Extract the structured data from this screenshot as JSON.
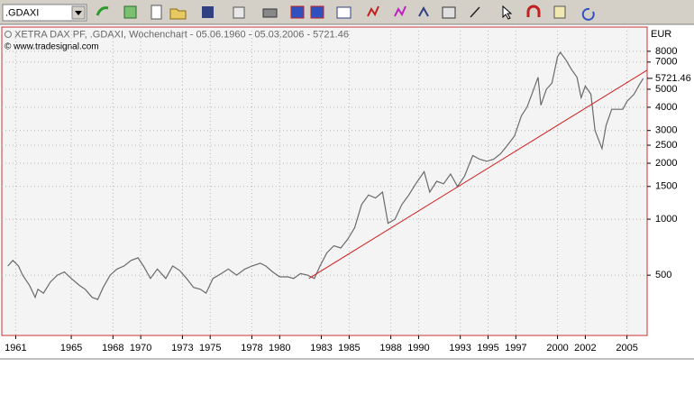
{
  "toolbar": {
    "symbol": ".GDAXI"
  },
  "chart_data": {
    "type": "line",
    "title": "XETRA DAX PF, .GDAXI, Wochenchart - 05.06.1960 - 05.03.2006 - 5721.46",
    "subtitle": "© www.tradesignal.com",
    "y_axis_label": "EUR",
    "last_value": 5721.46,
    "color": "#6a6a6a",
    "log_scale": true,
    "grid": true,
    "xlim": [
      1960,
      2006.45
    ],
    "xticks": [
      1961,
      1965,
      1968,
      1970,
      1973,
      1975,
      1978,
      1980,
      1983,
      1985,
      1988,
      1990,
      1993,
      1995,
      1997,
      2000,
      2002,
      2005
    ],
    "ylim": [
      237,
      10800
    ],
    "yticks": [
      500,
      1000,
      1500,
      2000,
      2500,
      3000,
      4000,
      5000,
      7000,
      8000
    ],
    "x": [
      1960.43,
      1960.8,
      1961.2,
      1961.5,
      1962.0,
      1962.4,
      1962.6,
      1963.0,
      1963.5,
      1964.0,
      1964.5,
      1965.0,
      1965.6,
      1966.0,
      1966.5,
      1966.9,
      1967.3,
      1967.8,
      1968.3,
      1968.8,
      1969.3,
      1969.8,
      1970.2,
      1970.7,
      1971.2,
      1971.8,
      1972.3,
      1972.8,
      1973.3,
      1973.8,
      1974.3,
      1974.7,
      1975.2,
      1975.8,
      1976.3,
      1976.9,
      1977.5,
      1978.0,
      1978.6,
      1979.0,
      1979.5,
      1980.0,
      1980.6,
      1981.0,
      1981.5,
      1982.0,
      1982.5,
      1982.9,
      1983.4,
      1983.9,
      1984.4,
      1984.9,
      1985.4,
      1985.9,
      1986.4,
      1986.9,
      1987.4,
      1987.8,
      1988.3,
      1988.8,
      1989.3,
      1989.8,
      1990.4,
      1990.8,
      1991.3,
      1991.8,
      1992.3,
      1992.8,
      1993.3,
      1993.9,
      1994.4,
      1994.9,
      1995.4,
      1995.9,
      1996.4,
      1996.9,
      1997.4,
      1997.8,
      1998.2,
      1998.6,
      1998.8,
      1999.2,
      1999.6,
      2000.0,
      2000.2,
      2000.6,
      2001.0,
      2001.4,
      2001.7,
      2002.0,
      2002.4,
      2002.7,
      2003.2,
      2003.5,
      2003.9,
      2004.3,
      2004.7,
      2005.0,
      2005.5,
      2005.9,
      2006.17
    ],
    "values": [
      560,
      600,
      560,
      500,
      440,
      380,
      420,
      400,
      460,
      500,
      520,
      480,
      440,
      420,
      380,
      370,
      430,
      500,
      540,
      560,
      600,
      620,
      560,
      480,
      540,
      480,
      560,
      530,
      480,
      430,
      420,
      400,
      480,
      510,
      540,
      500,
      540,
      560,
      580,
      560,
      520,
      490,
      490,
      480,
      510,
      500,
      480,
      560,
      660,
      720,
      700,
      780,
      900,
      1200,
      1350,
      1300,
      1400,
      950,
      1000,
      1200,
      1350,
      1550,
      1800,
      1400,
      1600,
      1550,
      1750,
      1500,
      1700,
      2200,
      2100,
      2050,
      2100,
      2250,
      2500,
      2800,
      3600,
      4000,
      4800,
      5800,
      4100,
      5000,
      5400,
      7500,
      7900,
      7200,
      6400,
      5800,
      4500,
      5200,
      4700,
      3000,
      2400,
      3200,
      3900,
      3900,
      3900,
      4300,
      4700,
      5300,
      5721.46
    ],
    "trend_line": {
      "color": "#d02020",
      "x": [
        1982.1,
        2006.45
      ],
      "values": [
        480,
        6330
      ]
    }
  }
}
